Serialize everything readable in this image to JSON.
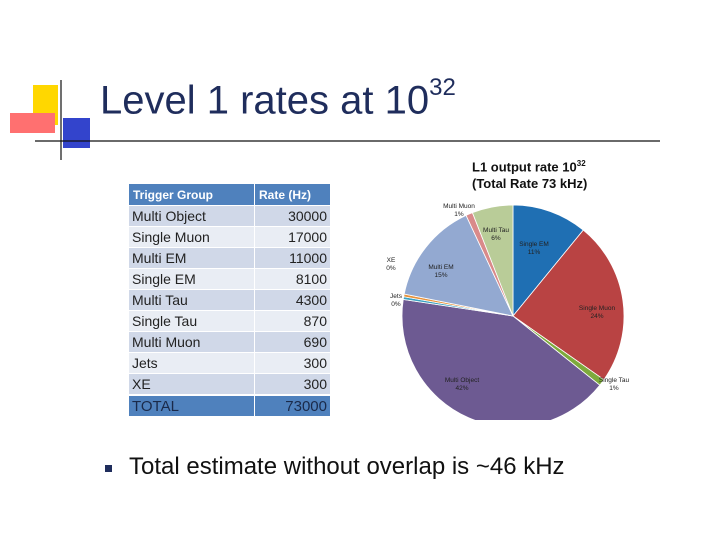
{
  "slide": {
    "title": "Level 1 rates at 10",
    "title_exponent": "32",
    "bullet": "Total estimate without overlap is ~46 kHz"
  },
  "table": {
    "headers": [
      "Trigger Group",
      "Rate (Hz)"
    ],
    "rows": [
      {
        "group": "Multi Object",
        "rate": "30000"
      },
      {
        "group": "Single Muon",
        "rate": "17000"
      },
      {
        "group": "Multi EM",
        "rate": "11000"
      },
      {
        "group": "Single EM",
        "rate": "8100"
      },
      {
        "group": "Multi Tau",
        "rate": "4300"
      },
      {
        "group": "Single Tau",
        "rate": "870"
      },
      {
        "group": "Multi Muon",
        "rate": "690"
      },
      {
        "group": "Jets",
        "rate": "300"
      },
      {
        "group": "XE",
        "rate": "300"
      }
    ],
    "total": {
      "group": "TOTAL",
      "rate": "73000"
    }
  },
  "chart_data": {
    "type": "pie",
    "title": "L1 output rate 10",
    "title_exponent": "32",
    "subtitle": "(Total Rate 73 kHz)",
    "slices": [
      {
        "label": "Single EM",
        "percent": 11,
        "display": "11%",
        "color": "#1f6fb3"
      },
      {
        "label": "Single Muon",
        "percent": 24,
        "display": "24%",
        "color": "#b94343"
      },
      {
        "label": "Single Tau",
        "percent": 1,
        "display": "1%",
        "color": "#7daa3c"
      },
      {
        "label": "Multi Object",
        "percent": 42,
        "display": "42%",
        "color": "#6d5a92"
      },
      {
        "label": "Jets",
        "percent": 0.4,
        "display": "0%",
        "color": "#3aa0c0"
      },
      {
        "label": "XE",
        "percent": 0.4,
        "display": "0%",
        "color": "#e8923a"
      },
      {
        "label": "Multi EM",
        "percent": 15,
        "display": "15%",
        "color": "#93a9d1"
      },
      {
        "label": "Multi Muon",
        "percent": 1,
        "display": "1%",
        "color": "#d98a8a"
      },
      {
        "label": "Multi Tau",
        "percent": 6,
        "display": "6%",
        "color": "#b9cc98"
      }
    ]
  },
  "colors": {
    "title": "#1f2d5c",
    "table_header": "#4f81bd",
    "table_row_odd": "#d0d8e8",
    "table_row_even": "#e9edf4",
    "deco_yellow": "#ffd700",
    "deco_red": "#ff6666",
    "deco_blue": "#3344cc"
  }
}
